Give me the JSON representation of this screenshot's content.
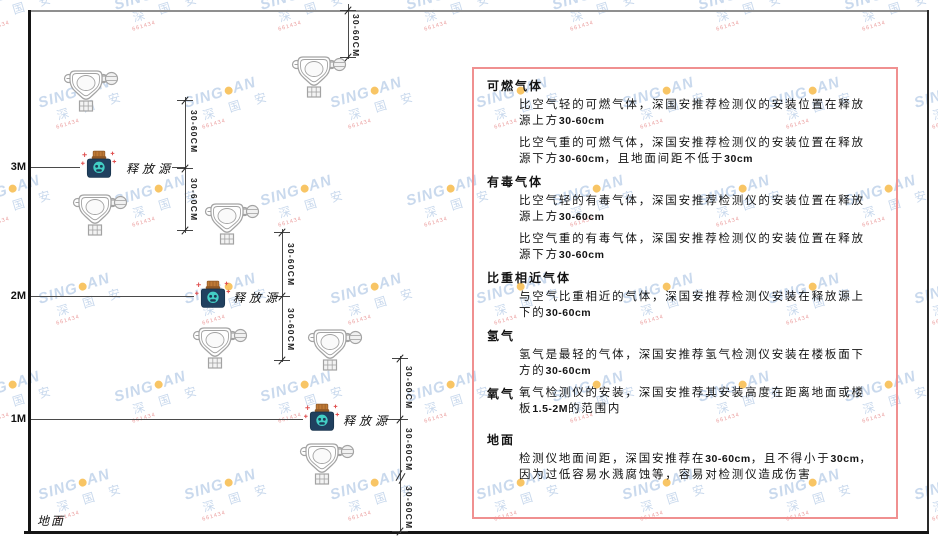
{
  "watermark": {
    "brand_left": "SING",
    "brand_right": "AN",
    "brand_cn": "深 国 安",
    "code": "661434",
    "dot_color": "#f5b231",
    "text_color": "#a8c2e2"
  },
  "diagram": {
    "ground_label": "地面",
    "source_label": "释放源",
    "dim_label": "30-60CM",
    "height_labels": [
      "3M",
      "2M",
      "1M"
    ]
  },
  "icons": {
    "detector": "gas-detector-icon",
    "source": "release-source-icon"
  },
  "colors": {
    "panel_border": "#f09090",
    "source_body": "#20405f",
    "source_cap": "#c07a36",
    "source_face": "#43cfc6",
    "sparkle_red": "#e05050",
    "detector_gray": "#a3a3a3"
  },
  "panel": {
    "sections": [
      {
        "heading": "可燃气体",
        "paragraphs": [
          "比空气轻的可燃气体，深国安推荐检测仪的安装位置在释放源上方30-60cm",
          "比空气重的可燃气体，深国安推荐检测仪的安装位置在释放源下方30-60cm，且地面间距不低于30cm"
        ]
      },
      {
        "heading": "有毒气体",
        "paragraphs": [
          "比空气轻的有毒气体，深国安推荐检测仪的安装位置在释放源上方30-60cm",
          "比空气重的有毒气体，深国安推荐检测仪的安装位置在释放源下方30-60cm"
        ]
      },
      {
        "heading": "比重相近气体",
        "paragraphs": [
          "与空气比重相近的气体，深国安推荐检测仪安装在释放源上下的30-60cm"
        ]
      },
      {
        "heading": "氢气",
        "paragraphs": [
          "氢气是最轻的气体，深国安推荐氢气检测仪安装在楼板面下方的30-60cm"
        ]
      },
      {
        "heading": "氧气",
        "inline": true,
        "paragraphs": [
          "氧气检测仪的安装，深国安推荐其安装高度在距离地面或楼板1.5-2M的范围内"
        ]
      },
      {
        "heading": "地面",
        "paragraphs": [
          "检测仪地面间距，深国安推荐在30-60cm，且不得小于30cm，因为过低容易水溅腐蚀等，容易对检测仪造成伤害"
        ]
      }
    ]
  }
}
